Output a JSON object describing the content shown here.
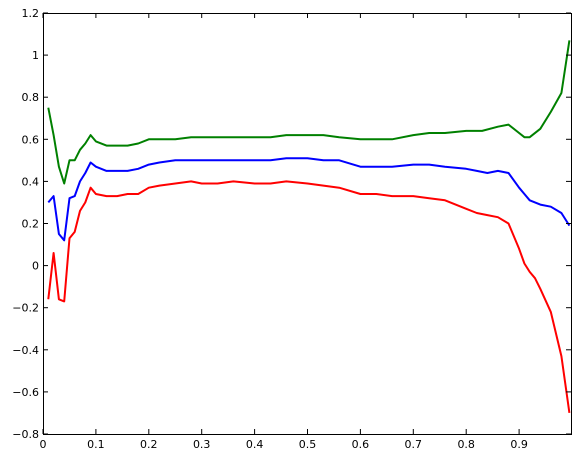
{
  "chart_data": {
    "type": "line",
    "title": "",
    "xlabel": "",
    "ylabel": "",
    "xlim": [
      0,
      1
    ],
    "ylim": [
      -0.8,
      1.2
    ],
    "grid": false,
    "legend": "none",
    "x_ticks": [
      0,
      0.1,
      0.2,
      0.3,
      0.4,
      0.5,
      0.6,
      0.7,
      0.8,
      0.9
    ],
    "x_tick_labels": [
      "0",
      "0.1",
      "0.2",
      "0.3",
      "0.4",
      "0.5",
      "0.6",
      "0.7",
      "0.8",
      "0.9"
    ],
    "y_ticks": [
      -0.8,
      -0.6,
      -0.4,
      -0.2,
      0,
      0.2,
      0.4,
      0.6,
      0.8,
      1,
      1.2
    ],
    "y_tick_labels": [
      "−0.8",
      "−0.6",
      "−0.4",
      "−0.2",
      "0",
      "0.2",
      "0.4",
      "0.6",
      "0.8",
      "1",
      "1.2"
    ],
    "series": [
      {
        "color": "#008000",
        "points": [
          [
            0.01,
            0.75
          ],
          [
            0.02,
            0.62
          ],
          [
            0.03,
            0.47
          ],
          [
            0.04,
            0.39
          ],
          [
            0.05,
            0.5
          ],
          [
            0.06,
            0.5
          ],
          [
            0.07,
            0.55
          ],
          [
            0.08,
            0.58
          ],
          [
            0.09,
            0.62
          ],
          [
            0.1,
            0.59
          ],
          [
            0.12,
            0.57
          ],
          [
            0.14,
            0.57
          ],
          [
            0.16,
            0.57
          ],
          [
            0.18,
            0.58
          ],
          [
            0.2,
            0.6
          ],
          [
            0.22,
            0.6
          ],
          [
            0.25,
            0.6
          ],
          [
            0.28,
            0.61
          ],
          [
            0.3,
            0.61
          ],
          [
            0.33,
            0.61
          ],
          [
            0.36,
            0.61
          ],
          [
            0.4,
            0.61
          ],
          [
            0.43,
            0.61
          ],
          [
            0.46,
            0.62
          ],
          [
            0.5,
            0.62
          ],
          [
            0.53,
            0.62
          ],
          [
            0.56,
            0.61
          ],
          [
            0.6,
            0.6
          ],
          [
            0.63,
            0.6
          ],
          [
            0.66,
            0.6
          ],
          [
            0.7,
            0.62
          ],
          [
            0.73,
            0.63
          ],
          [
            0.76,
            0.63
          ],
          [
            0.8,
            0.64
          ],
          [
            0.83,
            0.64
          ],
          [
            0.86,
            0.66
          ],
          [
            0.88,
            0.67
          ],
          [
            0.9,
            0.63
          ],
          [
            0.91,
            0.61
          ],
          [
            0.92,
            0.61
          ],
          [
            0.94,
            0.65
          ],
          [
            0.96,
            0.73
          ],
          [
            0.98,
            0.82
          ],
          [
            0.995,
            1.07
          ]
        ]
      },
      {
        "color": "#0000ff",
        "points": [
          [
            0.01,
            0.3
          ],
          [
            0.02,
            0.33
          ],
          [
            0.03,
            0.15
          ],
          [
            0.04,
            0.12
          ],
          [
            0.05,
            0.32
          ],
          [
            0.06,
            0.33
          ],
          [
            0.07,
            0.4
          ],
          [
            0.08,
            0.44
          ],
          [
            0.09,
            0.49
          ],
          [
            0.1,
            0.47
          ],
          [
            0.12,
            0.45
          ],
          [
            0.14,
            0.45
          ],
          [
            0.16,
            0.45
          ],
          [
            0.18,
            0.46
          ],
          [
            0.2,
            0.48
          ],
          [
            0.22,
            0.49
          ],
          [
            0.25,
            0.5
          ],
          [
            0.28,
            0.5
          ],
          [
            0.3,
            0.5
          ],
          [
            0.33,
            0.5
          ],
          [
            0.36,
            0.5
          ],
          [
            0.4,
            0.5
          ],
          [
            0.43,
            0.5
          ],
          [
            0.46,
            0.51
          ],
          [
            0.5,
            0.51
          ],
          [
            0.53,
            0.5
          ],
          [
            0.56,
            0.5
          ],
          [
            0.6,
            0.47
          ],
          [
            0.63,
            0.47
          ],
          [
            0.66,
            0.47
          ],
          [
            0.7,
            0.48
          ],
          [
            0.73,
            0.48
          ],
          [
            0.76,
            0.47
          ],
          [
            0.8,
            0.46
          ],
          [
            0.82,
            0.45
          ],
          [
            0.84,
            0.44
          ],
          [
            0.86,
            0.45
          ],
          [
            0.88,
            0.44
          ],
          [
            0.9,
            0.37
          ],
          [
            0.91,
            0.34
          ],
          [
            0.92,
            0.31
          ],
          [
            0.94,
            0.29
          ],
          [
            0.96,
            0.28
          ],
          [
            0.98,
            0.25
          ],
          [
            0.995,
            0.19
          ]
        ]
      },
      {
        "color": "#ff0000",
        "points": [
          [
            0.01,
            -0.16
          ],
          [
            0.02,
            0.06
          ],
          [
            0.03,
            -0.16
          ],
          [
            0.04,
            -0.17
          ],
          [
            0.05,
            0.13
          ],
          [
            0.06,
            0.16
          ],
          [
            0.07,
            0.26
          ],
          [
            0.08,
            0.3
          ],
          [
            0.09,
            0.37
          ],
          [
            0.1,
            0.34
          ],
          [
            0.12,
            0.33
          ],
          [
            0.14,
            0.33
          ],
          [
            0.16,
            0.34
          ],
          [
            0.18,
            0.34
          ],
          [
            0.2,
            0.37
          ],
          [
            0.22,
            0.38
          ],
          [
            0.25,
            0.39
          ],
          [
            0.28,
            0.4
          ],
          [
            0.3,
            0.39
          ],
          [
            0.33,
            0.39
          ],
          [
            0.36,
            0.4
          ],
          [
            0.4,
            0.39
          ],
          [
            0.43,
            0.39
          ],
          [
            0.46,
            0.4
          ],
          [
            0.5,
            0.39
          ],
          [
            0.53,
            0.38
          ],
          [
            0.56,
            0.37
          ],
          [
            0.6,
            0.34
          ],
          [
            0.63,
            0.34
          ],
          [
            0.66,
            0.33
          ],
          [
            0.7,
            0.33
          ],
          [
            0.73,
            0.32
          ],
          [
            0.76,
            0.31
          ],
          [
            0.8,
            0.27
          ],
          [
            0.82,
            0.25
          ],
          [
            0.84,
            0.24
          ],
          [
            0.86,
            0.23
          ],
          [
            0.88,
            0.2
          ],
          [
            0.9,
            0.08
          ],
          [
            0.91,
            0.01
          ],
          [
            0.92,
            -0.03
          ],
          [
            0.93,
            -0.06
          ],
          [
            0.94,
            -0.11
          ],
          [
            0.96,
            -0.22
          ],
          [
            0.98,
            -0.43
          ],
          [
            0.995,
            -0.7
          ]
        ]
      }
    ]
  }
}
